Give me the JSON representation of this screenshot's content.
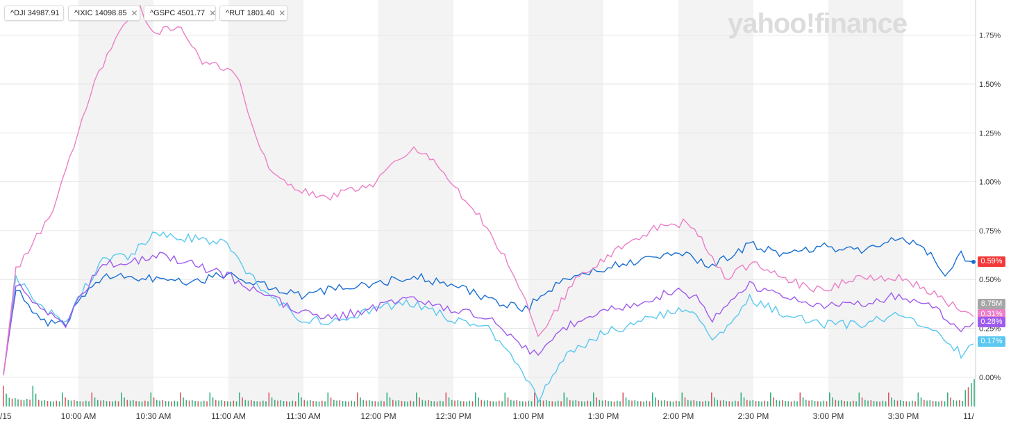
{
  "chart_data": {
    "type": "line",
    "x_ticks": [
      "/15",
      "10:00 AM",
      "10:30 AM",
      "11:00 AM",
      "11:30 AM",
      "12:00 PM",
      "12:30 PM",
      "1:00 PM",
      "1:30 PM",
      "2:00 PM",
      "2:30 PM",
      "3:00 PM",
      "3:30 PM",
      "11/"
    ],
    "y_ticks": [
      "0.00%",
      "0.25%",
      "0.50%",
      "0.75%",
      "1.00%",
      "1.25%",
      "1.50%",
      "1.75%"
    ],
    "ylim": [
      -0.15,
      1.93
    ],
    "xlim": [
      0,
      390
    ],
    "grid": true,
    "series": [
      {
        "name": "^DJI 34987.91",
        "color": "#1a6fd3",
        "x": [
          0,
          5,
          10,
          15,
          25,
          30,
          40,
          50,
          60,
          75,
          90,
          105,
          120,
          135,
          150,
          165,
          180,
          195,
          210,
          225,
          240,
          255,
          270,
          285,
          300,
          315,
          330,
          345,
          360,
          370,
          380,
          385,
          390
        ],
        "values": [
          0.02,
          0.45,
          0.38,
          0.28,
          0.27,
          0.4,
          0.52,
          0.52,
          0.5,
          0.48,
          0.53,
          0.47,
          0.41,
          0.46,
          0.48,
          0.52,
          0.47,
          0.4,
          0.35,
          0.5,
          0.55,
          0.6,
          0.64,
          0.57,
          0.68,
          0.63,
          0.67,
          0.64,
          0.71,
          0.66,
          0.52,
          0.63,
          0.59
        ]
      },
      {
        "name": "^IXIC 14098.85",
        "color": "#5ac8f0",
        "x": [
          0,
          5,
          10,
          15,
          25,
          30,
          40,
          50,
          60,
          70,
          80,
          90,
          105,
          120,
          135,
          150,
          165,
          180,
          195,
          210,
          215,
          225,
          240,
          255,
          270,
          280,
          285,
          300,
          315,
          330,
          345,
          360,
          375,
          385,
          390
        ],
        "values": [
          0.01,
          0.5,
          0.45,
          0.37,
          0.27,
          0.4,
          0.6,
          0.62,
          0.72,
          0.72,
          0.7,
          0.68,
          0.42,
          0.3,
          0.28,
          0.35,
          0.38,
          0.3,
          0.25,
          0.0,
          -0.12,
          0.1,
          0.22,
          0.28,
          0.34,
          0.3,
          0.18,
          0.4,
          0.32,
          0.27,
          0.27,
          0.32,
          0.25,
          0.12,
          0.17
        ]
      },
      {
        "name": "^GSPC 4501.77",
        "color": "#9f5bef",
        "x": [
          0,
          5,
          10,
          15,
          25,
          30,
          40,
          50,
          60,
          70,
          80,
          90,
          105,
          120,
          135,
          150,
          165,
          180,
          195,
          210,
          215,
          225,
          240,
          255,
          270,
          280,
          285,
          300,
          315,
          330,
          345,
          360,
          375,
          385,
          390
        ],
        "values": [
          0.01,
          0.47,
          0.42,
          0.34,
          0.27,
          0.4,
          0.58,
          0.58,
          0.63,
          0.6,
          0.56,
          0.52,
          0.42,
          0.33,
          0.31,
          0.36,
          0.4,
          0.35,
          0.3,
          0.15,
          0.1,
          0.25,
          0.33,
          0.38,
          0.44,
          0.4,
          0.3,
          0.47,
          0.41,
          0.37,
          0.37,
          0.42,
          0.35,
          0.24,
          0.28
        ]
      },
      {
        "name": "^RUT 1801.40",
        "color": "#ec7fc7",
        "x": [
          0,
          5,
          10,
          15,
          20,
          25,
          30,
          35,
          40,
          45,
          50,
          55,
          60,
          70,
          80,
          90,
          95,
          100,
          105,
          110,
          120,
          130,
          140,
          150,
          160,
          165,
          170,
          180,
          190,
          200,
          210,
          215,
          220,
          230,
          240,
          250,
          260,
          270,
          275,
          285,
          290,
          300,
          310,
          320,
          330,
          340,
          350,
          360,
          370,
          380,
          385,
          390
        ],
        "values": [
          0.01,
          0.55,
          0.65,
          0.75,
          0.85,
          1.05,
          1.25,
          1.45,
          1.6,
          1.72,
          1.82,
          1.88,
          1.75,
          1.8,
          1.62,
          1.58,
          1.5,
          1.3,
          1.12,
          1.01,
          0.95,
          0.92,
          0.95,
          1.0,
          1.12,
          1.18,
          1.15,
          0.98,
          0.85,
          0.65,
          0.4,
          0.22,
          0.3,
          0.5,
          0.6,
          0.68,
          0.75,
          0.78,
          0.8,
          0.62,
          0.5,
          0.58,
          0.55,
          0.47,
          0.45,
          0.5,
          0.5,
          0.52,
          0.45,
          0.38,
          0.33,
          0.31
        ]
      }
    ],
    "volume": {
      "up_color": "#34b07f",
      "down_color": "#e0555f",
      "pattern": [
        0.9,
        0.5,
        0.3,
        0.25,
        0.28,
        0.22,
        0.2,
        0.18,
        0.24,
        0.2
      ],
      "end_spikes": [
        0.5,
        0.6,
        0.75,
        0.9
      ]
    }
  },
  "legend": [
    {
      "symbol": "^DJI",
      "price": "34987.91",
      "color": "#1a6fd3",
      "closable": false
    },
    {
      "symbol": "^IXIC",
      "price": "14098.85",
      "color": "#5ac8f0",
      "closable": true
    },
    {
      "symbol": "^GSPC",
      "price": "4501.77",
      "color": "#9f5bef",
      "closable": true
    },
    {
      "symbol": "^RUT",
      "price": "1801.40",
      "color": "#ec7fc7",
      "closable": true
    }
  ],
  "brand": "yahoo!finance",
  "close_icon": "✕",
  "price_tags": [
    {
      "label": "0.59%",
      "color": "#f23a3a"
    },
    {
      "label": "8.75M",
      "color": "#a6a6a6"
    },
    {
      "label": "0.31%",
      "color": "#ec7fc7"
    },
    {
      "label": "0.28%",
      "color": "#9f5bef"
    },
    {
      "label": "0.17%",
      "color": "#5ac8f0"
    }
  ]
}
